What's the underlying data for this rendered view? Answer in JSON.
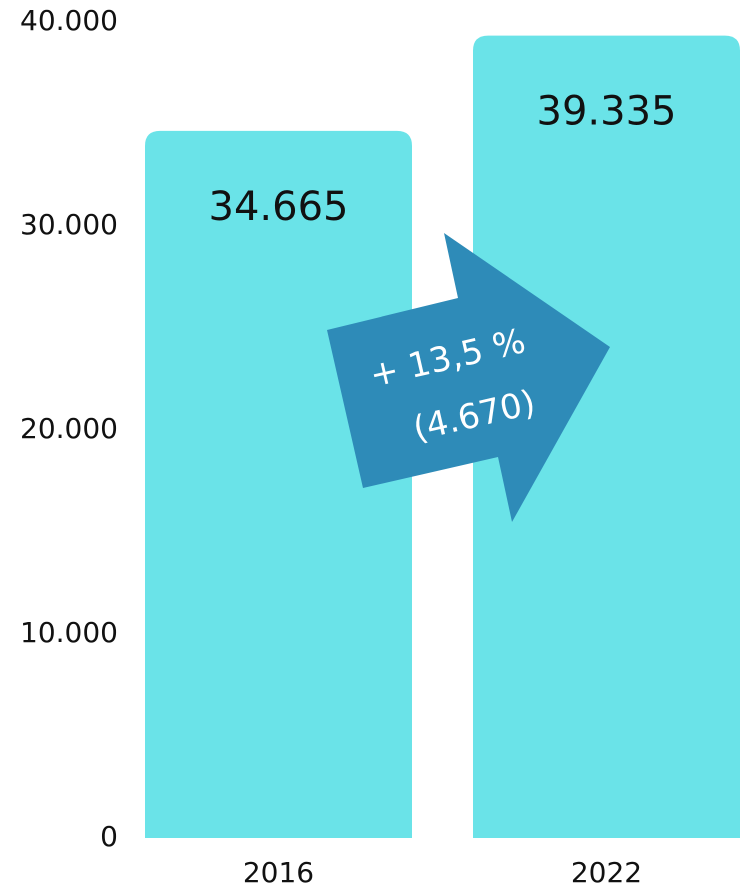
{
  "chart_data": {
    "type": "bar",
    "categories": [
      "2016",
      "2022"
    ],
    "values": [
      34665,
      39335
    ],
    "value_labels": [
      "34.665",
      "39.335"
    ],
    "color": "#6ae3e8",
    "ylim": [
      0,
      40000
    ],
    "yticks": [
      0,
      {
        "value": 10000,
        "label": "10.000"
      },
      {
        "value": 20000,
        "label": "20.000"
      },
      {
        "value": 30000,
        "label": "30.000"
      },
      {
        "value": 40000,
        "label": "40.000"
      }
    ],
    "grid": false,
    "annotations": [
      "+ 13,5 %",
      "(4.670)"
    ]
  }
}
